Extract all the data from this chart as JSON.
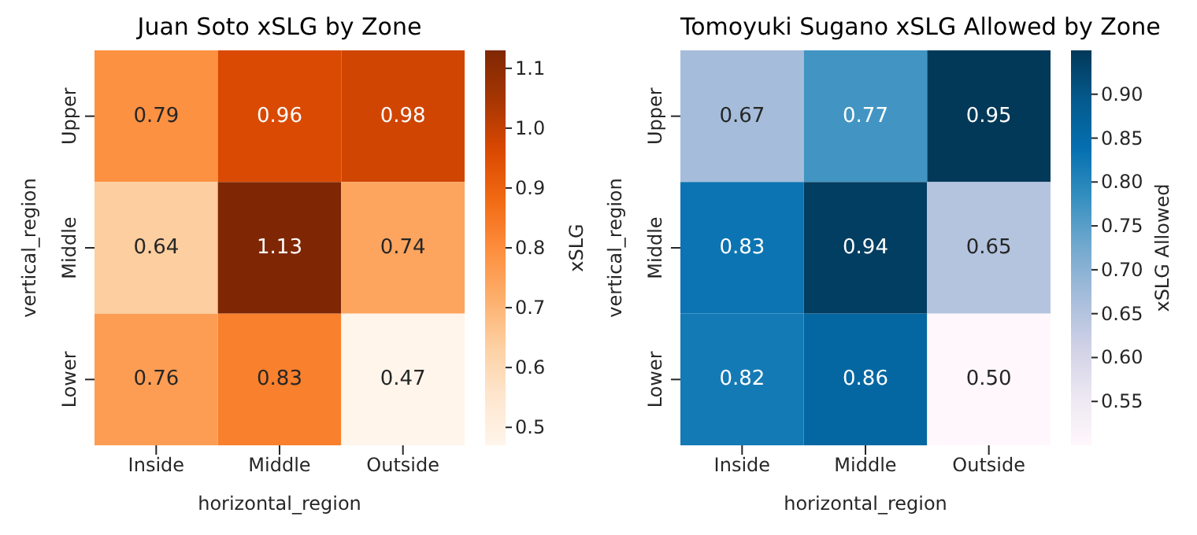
{
  "chart_data": [
    {
      "type": "heatmap",
      "title": "Juan Soto xSLG by Zone",
      "xlabel": "horizontal_region",
      "ylabel": "vertical_region",
      "clabel": "xSLG",
      "categories": [
        "Inside",
        "Middle",
        "Outside"
      ],
      "y_categories": [
        "Upper",
        "Middle",
        "Lower"
      ],
      "cells": [
        [
          0.79,
          0.96,
          0.98
        ],
        [
          0.64,
          1.13,
          0.74
        ],
        [
          0.76,
          0.83,
          0.47
        ]
      ],
      "cell_labels": [
        [
          "0.79",
          "0.96",
          "0.98"
        ],
        [
          "0.64",
          "1.13",
          "0.74"
        ],
        [
          "0.76",
          "0.83",
          "0.47"
        ]
      ],
      "clim": [
        0.47,
        1.13
      ],
      "cticks": [
        0.5,
        0.6,
        0.7,
        0.8,
        0.9,
        {
          "value": 1,
          "label": "1.0"
        },
        1.1
      ]
    },
    {
      "type": "heatmap",
      "title": "Tomoyuki Sugano xSLG Allowed by Zone",
      "xlabel": "horizontal_region",
      "ylabel": "vertical_region",
      "clabel": "xSLG Allowed",
      "categories": [
        "Inside",
        "Middle",
        "Outside"
      ],
      "y_categories": [
        "Upper",
        "Middle",
        "Lower"
      ],
      "cells": [
        [
          0.67,
          0.77,
          0.95
        ],
        [
          0.83,
          0.94,
          0.65
        ],
        [
          0.82,
          0.86,
          0.5
        ]
      ],
      "cell_labels": [
        [
          "0.67",
          "0.77",
          "0.95"
        ],
        [
          "0.83",
          "0.94",
          "0.65"
        ],
        [
          "0.82",
          "0.86",
          "0.50"
        ]
      ],
      "clim": [
        0.5,
        0.95
      ],
      "cticks": [
        0.55,
        {
          "value": 0.6,
          "label": "0.60"
        },
        0.65,
        {
          "value": 0.7,
          "label": "0.70"
        },
        0.75,
        {
          "value": 0.8,
          "label": "0.80"
        },
        0.85,
        {
          "value": 0.9,
          "label": "0.90"
        }
      ]
    }
  ]
}
